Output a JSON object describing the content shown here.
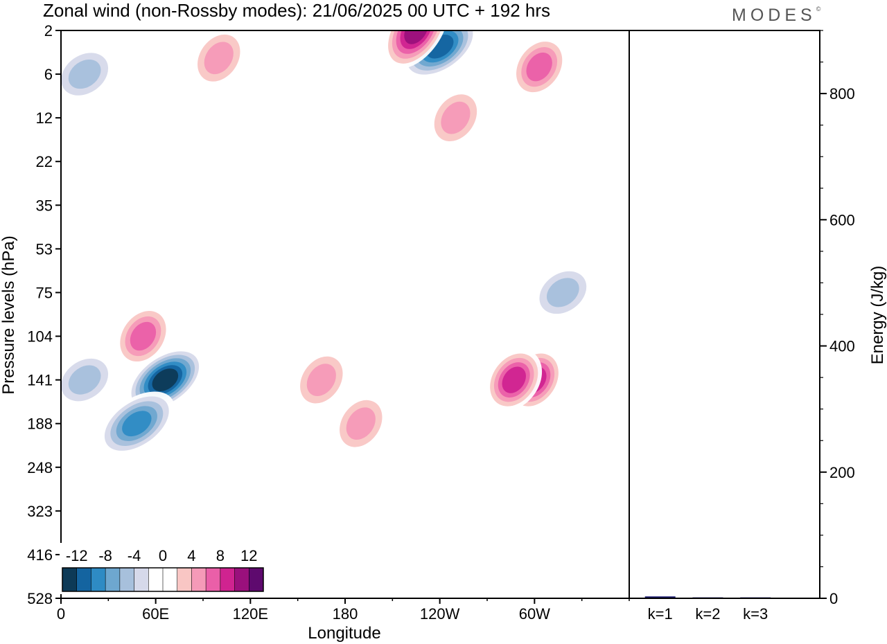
{
  "header": {
    "title": "Zonal wind (non-Rossby modes):  21/06/2025  00 UTC  + 192 hrs",
    "brand": "MODES",
    "brand_mark": "©"
  },
  "colors": {
    "scale": [
      "#0d3a57",
      "#1464a0",
      "#2e8bc4",
      "#6ea7cf",
      "#a7c0dc",
      "#d6d9ea",
      "#ffffff",
      "#ffffff",
      "#f9c6c4",
      "#f59ab8",
      "#ea5fa8",
      "#d02390",
      "#9a107c",
      "#5e0a6e"
    ]
  },
  "chart_data": [
    {
      "type": "heatmap",
      "title": "Zonal wind (non-Rossby modes):  21/06/2025  00 UTC  + 192 hrs",
      "xlabel": "Longitude",
      "ylabel": "Pressure levels (hPa)",
      "x_ticks": [
        "0",
        "60E",
        "120E",
        "180",
        "120W",
        "60W"
      ],
      "y_ticks": [
        "2",
        "6",
        "12",
        "22",
        "35",
        "53",
        "75",
        "104",
        "141",
        "188",
        "248",
        "323",
        "416",
        "528"
      ],
      "colorbar": {
        "tick_labels": [
          "-12",
          "-8",
          "-4",
          "0",
          "4",
          "8",
          "12"
        ],
        "levels": [
          -14,
          -12,
          -10,
          -8,
          -6,
          -4,
          -2,
          0,
          2,
          4,
          6,
          8,
          10,
          12,
          14
        ]
      },
      "features": [
        {
          "lon": 66,
          "level": 141,
          "value": -14
        },
        {
          "lon": 48,
          "level": 188,
          "value": -10
        },
        {
          "lon": 15,
          "level": 141,
          "value": -5
        },
        {
          "lon": 52,
          "level": 104,
          "value": 7
        },
        {
          "lon": 15,
          "level": 6,
          "value": -5
        },
        {
          "lon": 240,
          "level": 3,
          "value": -12
        },
        {
          "lon": 225,
          "level": 2,
          "value": 12
        },
        {
          "lon": 300,
          "level": 141,
          "value": 9
        },
        {
          "lon": 287,
          "level": 141,
          "value": 9
        },
        {
          "lon": 318,
          "level": 75,
          "value": -6
        },
        {
          "lon": 190,
          "level": 188,
          "value": 6
        },
        {
          "lon": 165,
          "level": 141,
          "value": 5
        },
        {
          "lon": 250,
          "level": 12,
          "value": 5
        },
        {
          "lon": 100,
          "level": 4,
          "value": 6
        },
        {
          "lon": 303,
          "level": 5,
          "value": 7
        }
      ]
    },
    {
      "type": "bar",
      "categories": [
        "k=1",
        "k=2",
        "k=3"
      ],
      "values": [
        3,
        1.5,
        1.5
      ],
      "ylabel": "Energy (J/kg)",
      "ylim": [
        0,
        900
      ],
      "y_ticks": [
        0,
        200,
        400,
        600,
        800
      ]
    }
  ]
}
